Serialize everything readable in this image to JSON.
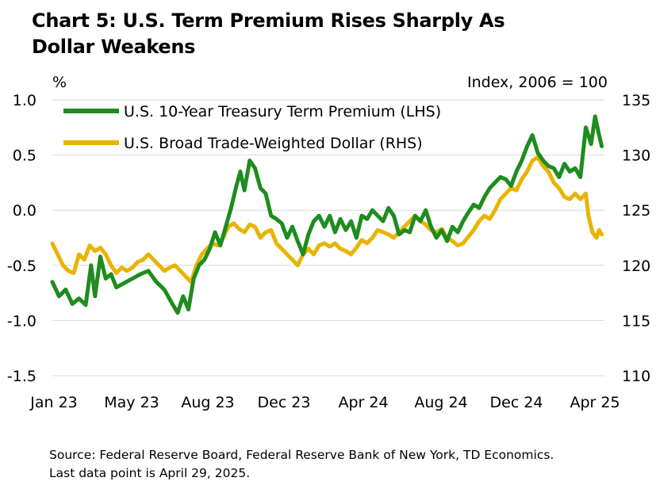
{
  "title": {
    "line1": "Chart 5: U.S. Term Premium Rises Sharply As",
    "line2": "Dollar Weakens"
  },
  "source": {
    "line1": "Source: Federal Reserve Board, Federal Reserve Bank of New York, TD Economics.",
    "line2": "Last data point is April 29, 2025."
  },
  "chart_data": {
    "type": "line",
    "left_unit": "%",
    "right_unit": "Index, 2006 = 100",
    "left_axis": {
      "ticks": [
        "1.0",
        "0.5",
        "0.0",
        "-0.5",
        "-1.0",
        "-1.5"
      ],
      "range": [
        -1.5,
        1.0
      ]
    },
    "right_axis": {
      "ticks": [
        "135",
        "130",
        "125",
        "120",
        "115",
        "110"
      ],
      "range": [
        110,
        135
      ]
    },
    "x_ticks": [
      "Jan 23",
      "May 23",
      "Aug 23",
      "Dec 23",
      "Apr 24",
      "Aug 24",
      "Dec 24",
      "Apr 25"
    ],
    "gridlines": "horizontal",
    "legend_position": "top-left",
    "series": [
      {
        "name": "U.S. 10-Year Treasury Term Premium (LHS)",
        "axis": "left",
        "color": "#1e8c1e",
        "points": [
          [
            0.0,
            -0.65
          ],
          [
            0.25,
            -0.78
          ],
          [
            0.5,
            -0.72
          ],
          [
            0.75,
            -0.85
          ],
          [
            1.0,
            -0.8
          ],
          [
            1.25,
            -0.86
          ],
          [
            1.45,
            -0.5
          ],
          [
            1.6,
            -0.78
          ],
          [
            1.8,
            -0.42
          ],
          [
            2.0,
            -0.62
          ],
          [
            2.2,
            -0.58
          ],
          [
            2.4,
            -0.7
          ],
          [
            2.7,
            -0.66
          ],
          [
            3.0,
            -0.62
          ],
          [
            3.3,
            -0.58
          ],
          [
            3.6,
            -0.55
          ],
          [
            3.9,
            -0.65
          ],
          [
            4.2,
            -0.72
          ],
          [
            4.5,
            -0.85
          ],
          [
            4.7,
            -0.93
          ],
          [
            4.9,
            -0.78
          ],
          [
            5.1,
            -0.9
          ],
          [
            5.3,
            -0.62
          ],
          [
            5.5,
            -0.5
          ],
          [
            5.7,
            -0.45
          ],
          [
            5.9,
            -0.35
          ],
          [
            6.1,
            -0.2
          ],
          [
            6.3,
            -0.32
          ],
          [
            6.5,
            -0.15
          ],
          [
            6.7,
            0.02
          ],
          [
            6.9,
            0.22
          ],
          [
            7.05,
            0.35
          ],
          [
            7.2,
            0.18
          ],
          [
            7.4,
            0.45
          ],
          [
            7.6,
            0.38
          ],
          [
            7.8,
            0.2
          ],
          [
            8.0,
            0.15
          ],
          [
            8.2,
            -0.05
          ],
          [
            8.4,
            -0.08
          ],
          [
            8.6,
            -0.12
          ],
          [
            8.8,
            -0.25
          ],
          [
            9.0,
            -0.15
          ],
          [
            9.2,
            -0.28
          ],
          [
            9.4,
            -0.4
          ],
          [
            9.6,
            -0.22
          ],
          [
            9.8,
            -0.1
          ],
          [
            10.0,
            -0.05
          ],
          [
            10.2,
            -0.15
          ],
          [
            10.4,
            -0.05
          ],
          [
            10.6,
            -0.2
          ],
          [
            10.8,
            -0.08
          ],
          [
            11.0,
            -0.18
          ],
          [
            11.2,
            -0.1
          ],
          [
            11.4,
            -0.25
          ],
          [
            11.6,
            -0.05
          ],
          [
            11.8,
            -0.08
          ],
          [
            12.0,
            0.0
          ],
          [
            12.2,
            -0.05
          ],
          [
            12.4,
            -0.1
          ],
          [
            12.6,
            0.02
          ],
          [
            12.8,
            -0.05
          ],
          [
            13.0,
            -0.22
          ],
          [
            13.2,
            -0.18
          ],
          [
            13.4,
            -0.2
          ],
          [
            13.6,
            -0.05
          ],
          [
            13.8,
            -0.1
          ],
          [
            14.0,
            0.0
          ],
          [
            14.2,
            -0.15
          ],
          [
            14.4,
            -0.25
          ],
          [
            14.6,
            -0.18
          ],
          [
            14.8,
            -0.28
          ],
          [
            15.0,
            -0.15
          ],
          [
            15.2,
            -0.2
          ],
          [
            15.4,
            -0.1
          ],
          [
            15.6,
            -0.02
          ],
          [
            15.8,
            0.05
          ],
          [
            16.0,
            0.02
          ],
          [
            16.2,
            0.12
          ],
          [
            16.4,
            0.2
          ],
          [
            16.6,
            0.25
          ],
          [
            16.8,
            0.3
          ],
          [
            17.0,
            0.28
          ],
          [
            17.2,
            0.22
          ],
          [
            17.4,
            0.35
          ],
          [
            17.6,
            0.45
          ],
          [
            17.8,
            0.58
          ],
          [
            18.0,
            0.68
          ],
          [
            18.2,
            0.52
          ],
          [
            18.4,
            0.45
          ],
          [
            18.6,
            0.4
          ],
          [
            18.8,
            0.38
          ],
          [
            19.0,
            0.3
          ],
          [
            19.2,
            0.42
          ],
          [
            19.4,
            0.35
          ],
          [
            19.6,
            0.38
          ],
          [
            19.8,
            0.3
          ],
          [
            20.0,
            0.75
          ],
          [
            20.2,
            0.6
          ],
          [
            20.35,
            0.85
          ],
          [
            20.5,
            0.68
          ],
          [
            20.6,
            0.58
          ]
        ]
      },
      {
        "name": "U.S. Broad Trade-Weighted Dollar (RHS)",
        "axis": "right",
        "color": "#e8b400",
        "points": [
          [
            0.0,
            122.0
          ],
          [
            0.2,
            121.0
          ],
          [
            0.4,
            120.0
          ],
          [
            0.6,
            119.5
          ],
          [
            0.8,
            119.3
          ],
          [
            1.0,
            121.0
          ],
          [
            1.2,
            120.5
          ],
          [
            1.4,
            121.8
          ],
          [
            1.6,
            121.3
          ],
          [
            1.8,
            121.6
          ],
          [
            2.0,
            121.0
          ],
          [
            2.2,
            120.0
          ],
          [
            2.4,
            119.3
          ],
          [
            2.6,
            119.8
          ],
          [
            2.8,
            119.5
          ],
          [
            3.0,
            119.8
          ],
          [
            3.2,
            120.3
          ],
          [
            3.4,
            120.5
          ],
          [
            3.6,
            121.0
          ],
          [
            3.8,
            120.5
          ],
          [
            4.0,
            120.0
          ],
          [
            4.2,
            119.5
          ],
          [
            4.4,
            119.8
          ],
          [
            4.6,
            120.0
          ],
          [
            4.8,
            119.5
          ],
          [
            5.0,
            119.0
          ],
          [
            5.2,
            118.5
          ],
          [
            5.4,
            120.0
          ],
          [
            5.6,
            121.0
          ],
          [
            5.8,
            121.5
          ],
          [
            6.0,
            122.0
          ],
          [
            6.2,
            121.8
          ],
          [
            6.4,
            122.5
          ],
          [
            6.6,
            123.5
          ],
          [
            6.8,
            123.8
          ],
          [
            7.0,
            123.3
          ],
          [
            7.2,
            123.0
          ],
          [
            7.4,
            123.7
          ],
          [
            7.6,
            123.5
          ],
          [
            7.8,
            122.5
          ],
          [
            8.0,
            123.0
          ],
          [
            8.2,
            123.2
          ],
          [
            8.4,
            122.0
          ],
          [
            8.6,
            121.5
          ],
          [
            8.8,
            121.0
          ],
          [
            9.0,
            120.5
          ],
          [
            9.2,
            120.0
          ],
          [
            9.4,
            121.0
          ],
          [
            9.6,
            121.5
          ],
          [
            9.8,
            121.0
          ],
          [
            10.0,
            121.8
          ],
          [
            10.2,
            122.0
          ],
          [
            10.4,
            121.7
          ],
          [
            10.6,
            122.0
          ],
          [
            10.8,
            121.5
          ],
          [
            11.0,
            121.3
          ],
          [
            11.2,
            121.0
          ],
          [
            11.4,
            121.6
          ],
          [
            11.6,
            122.3
          ],
          [
            11.8,
            122.0
          ],
          [
            12.0,
            122.5
          ],
          [
            12.2,
            123.2
          ],
          [
            12.4,
            123.0
          ],
          [
            12.6,
            122.8
          ],
          [
            12.8,
            122.5
          ],
          [
            13.0,
            123.0
          ],
          [
            13.2,
            123.5
          ],
          [
            13.4,
            124.0
          ],
          [
            13.6,
            124.5
          ],
          [
            13.8,
            124.0
          ],
          [
            14.0,
            123.7
          ],
          [
            14.2,
            123.2
          ],
          [
            14.4,
            123.0
          ],
          [
            14.6,
            123.3
          ],
          [
            14.8,
            122.5
          ],
          [
            15.0,
            122.2
          ],
          [
            15.2,
            121.8
          ],
          [
            15.4,
            122.0
          ],
          [
            15.6,
            122.6
          ],
          [
            15.8,
            123.2
          ],
          [
            16.0,
            124.0
          ],
          [
            16.2,
            124.5
          ],
          [
            16.4,
            124.2
          ],
          [
            16.6,
            125.0
          ],
          [
            16.8,
            126.0
          ],
          [
            17.0,
            126.5
          ],
          [
            17.2,
            127.0
          ],
          [
            17.4,
            126.8
          ],
          [
            17.6,
            127.8
          ],
          [
            17.8,
            128.5
          ],
          [
            18.0,
            129.5
          ],
          [
            18.2,
            129.8
          ],
          [
            18.4,
            129.0
          ],
          [
            18.6,
            128.5
          ],
          [
            18.8,
            127.5
          ],
          [
            19.0,
            127.0
          ],
          [
            19.2,
            126.2
          ],
          [
            19.4,
            126.0
          ],
          [
            19.6,
            126.5
          ],
          [
            19.8,
            126.0
          ],
          [
            20.0,
            126.5
          ],
          [
            20.1,
            124.5
          ],
          [
            20.25,
            123.0
          ],
          [
            20.4,
            122.5
          ],
          [
            20.5,
            123.2
          ],
          [
            20.6,
            122.8
          ]
        ]
      }
    ]
  }
}
